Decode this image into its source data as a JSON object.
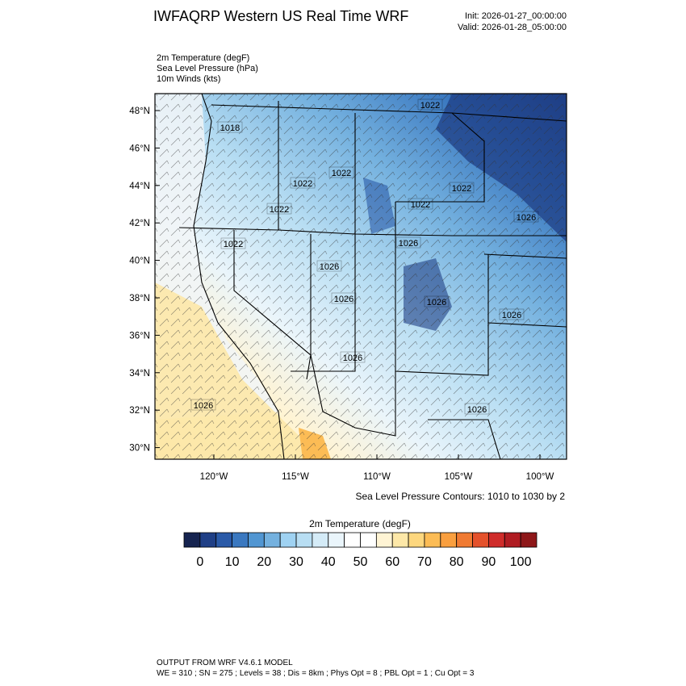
{
  "header": {
    "title": "IWFAQRP Western US Real Time WRF",
    "init": "Init: 2026-01-27_00:00:00",
    "valid": "Valid: 2026-01-28_05:00:00"
  },
  "fields": [
    "2m Temperature   (degF)",
    "Sea Level Pressure   (hPa)",
    "10m Winds   (kts)"
  ],
  "map": {
    "lat_labels": [
      "48°N",
      "46°N",
      "44°N",
      "42°N",
      "40°N",
      "38°N",
      "36°N",
      "34°N",
      "32°N",
      "30°N"
    ],
    "lon_labels": [
      "120°W",
      "115°W",
      "110°W",
      "105°W",
      "100°W"
    ],
    "contour_labels": [
      "1022",
      "1018",
      "1022",
      "1022",
      "1022",
      "1022",
      "1022",
      "1026",
      "1022",
      "1026",
      "1026",
      "1026",
      "1026",
      "1026",
      "1026",
      "1026",
      "1026"
    ],
    "contour_note": "Sea Level Pressure Contours: 1010 to 1030 by 2"
  },
  "colorbar": {
    "title": "2m Temperature  (degF)",
    "ticks": [
      0,
      10,
      20,
      30,
      40,
      50,
      60,
      70,
      80,
      90,
      100
    ],
    "colors": [
      "#162450",
      "#1f3f86",
      "#2a5aa8",
      "#3a78c0",
      "#5196d2",
      "#74b1df",
      "#9fd2f2",
      "#b8def3",
      "#d4ebf7",
      "#eaf5fb",
      "#ffffff",
      "#ffffff",
      "#fff4d4",
      "#fde8a8",
      "#fdd77e",
      "#fcbc55",
      "#f99f3f",
      "#f07a32",
      "#e4512b",
      "#cf2c2a",
      "#b01c22",
      "#8e1719"
    ]
  },
  "footer": {
    "line1": "OUTPUT FROM WRF V4.6.1 MODEL",
    "line2": "WE = 310 ; SN = 275 ; Levels = 38 ; Dis = 8km ; Phys Opt = 8 ; PBL Opt = 1 ; Cu Opt = 3"
  }
}
